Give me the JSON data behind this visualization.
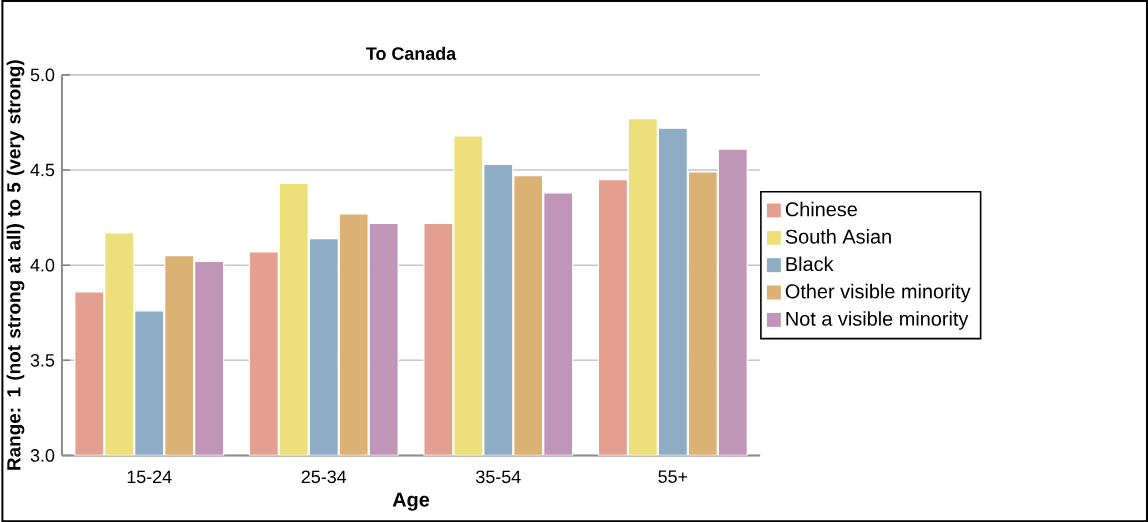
{
  "chart_data": {
    "type": "bar",
    "title": "To Canada",
    "xlabel": "Age",
    "ylabel": "Range: 1 (not strong at all) to 5 (very strong)",
    "categories": [
      "15-24",
      "25-34",
      "35-54",
      "55+"
    ],
    "series": [
      {
        "name": "Chinese",
        "color": "#e3a090",
        "values": [
          3.86,
          4.07,
          4.22,
          4.45
        ]
      },
      {
        "name": "South Asian",
        "color": "#ede07a",
        "values": [
          4.17,
          4.43,
          4.68,
          4.77
        ]
      },
      {
        "name": "Black",
        "color": "#8eadc4",
        "values": [
          3.76,
          4.14,
          4.53,
          4.72
        ]
      },
      {
        "name": "Other visible minority",
        "color": "#dcb274",
        "values": [
          4.05,
          4.27,
          4.47,
          4.49
        ]
      },
      {
        "name": "Not a visible minority",
        "color": "#bf95b8",
        "values": [
          4.02,
          4.22,
          4.38,
          4.61
        ]
      }
    ],
    "ylim": [
      3.0,
      5.0
    ],
    "yticks": [
      {
        "value": 3.0,
        "label": "3.0"
      },
      {
        "value": 3.5,
        "label": "3.5"
      },
      {
        "value": 4.0,
        "label": "4.0"
      },
      {
        "value": 4.5,
        "label": "4.5"
      },
      {
        "value": 5.0,
        "label": "5.0"
      }
    ],
    "grid": "y",
    "legend": "right"
  }
}
